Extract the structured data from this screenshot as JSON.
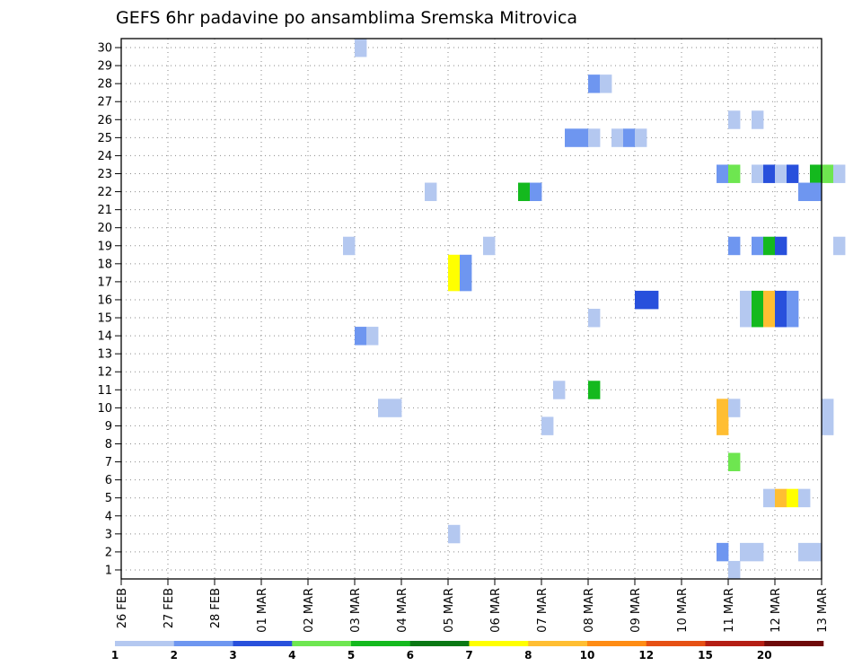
{
  "chart_data": {
    "type": "heatmap",
    "title": "GEFS 6hr padavine po ansamblima Sremska Mitrovica",
    "xlabel": "",
    "ylabel": "",
    "x_ticks": [
      "26 FEB",
      "27 FEB",
      "28 FEB",
      "01 MAR",
      "02 MAR",
      "03 MAR",
      "04 MAR",
      "05 MAR",
      "06 MAR",
      "07 MAR",
      "08 MAR",
      "09 MAR",
      "10 MAR",
      "11 MAR",
      "12 MAR",
      "13 MAR"
    ],
    "x_range_days": [
      0,
      15
    ],
    "y_ticks": [
      "1",
      "2",
      "3",
      "4",
      "5",
      "6",
      "7",
      "8",
      "9",
      "10",
      "11",
      "12",
      "13",
      "14",
      "15",
      "16",
      "17",
      "18",
      "19",
      "20",
      "21",
      "22",
      "23",
      "24",
      "25",
      "26",
      "27",
      "28",
      "29",
      "30"
    ],
    "y_range": [
      0.5,
      30.5
    ],
    "grid": true,
    "colorbar": {
      "colors": [
        "#b4c8f0",
        "#6e96f0",
        "#2850dc",
        "#6ee650",
        "#14b91e",
        "#0a7814",
        "#ffff00",
        "#ffbe32",
        "#ff8c14",
        "#e65014",
        "#b41e14",
        "#6e0a0a"
      ],
      "tick_labels": [
        "1",
        "2",
        "3",
        "4",
        "5",
        "6",
        "7",
        "8",
        "10",
        "12",
        "15",
        "20"
      ]
    },
    "cells_units": "member, start_day_since_26FEB, length_days, color_class_1_to_12",
    "cells": [
      [
        30,
        5.0,
        0.25,
        1
      ],
      [
        28,
        10.0,
        0.25,
        2
      ],
      [
        28,
        10.25,
        0.25,
        1
      ],
      [
        26,
        13.0,
        0.25,
        1
      ],
      [
        26,
        13.5,
        0.25,
        1
      ],
      [
        25,
        9.5,
        0.5,
        2
      ],
      [
        25,
        10.0,
        0.25,
        1
      ],
      [
        25,
        10.5,
        0.25,
        1
      ],
      [
        25,
        10.75,
        0.25,
        2
      ],
      [
        25,
        11.0,
        0.25,
        1
      ],
      [
        23,
        12.75,
        0.25,
        2
      ],
      [
        23,
        13.0,
        0.25,
        4
      ],
      [
        23,
        13.5,
        0.25,
        1
      ],
      [
        23,
        13.75,
        0.25,
        3
      ],
      [
        23,
        14.0,
        0.25,
        1
      ],
      [
        23,
        14.25,
        0.25,
        3
      ],
      [
        23,
        14.75,
        0.25,
        5
      ],
      [
        23,
        15.0,
        0.25,
        4
      ],
      [
        23,
        15.25,
        0.25,
        1
      ],
      [
        22,
        6.5,
        0.25,
        1
      ],
      [
        22,
        8.5,
        0.25,
        5
      ],
      [
        22,
        8.75,
        0.25,
        2
      ],
      [
        22,
        14.5,
        0.5,
        2
      ],
      [
        19,
        4.75,
        0.25,
        1
      ],
      [
        19,
        7.75,
        0.25,
        1
      ],
      [
        19,
        13.0,
        0.25,
        2
      ],
      [
        19,
        13.5,
        0.25,
        2
      ],
      [
        19,
        13.75,
        0.25,
        5
      ],
      [
        19,
        14.0,
        0.25,
        3
      ],
      [
        19,
        15.25,
        0.25,
        1
      ],
      [
        18,
        7.0,
        0.25,
        7
      ],
      [
        18,
        7.25,
        0.25,
        2
      ],
      [
        17,
        7.0,
        0.25,
        7
      ],
      [
        17,
        7.25,
        0.25,
        2
      ],
      [
        16,
        11.0,
        0.5,
        3
      ],
      [
        16,
        13.25,
        0.25,
        1
      ],
      [
        16,
        13.5,
        0.25,
        5
      ],
      [
        16,
        13.75,
        0.25,
        8
      ],
      [
        16,
        14.0,
        0.25,
        3
      ],
      [
        16,
        14.25,
        0.25,
        2
      ],
      [
        15,
        10.0,
        0.25,
        1
      ],
      [
        15,
        13.25,
        0.25,
        1
      ],
      [
        15,
        13.5,
        0.25,
        5
      ],
      [
        15,
        13.75,
        0.25,
        8
      ],
      [
        15,
        14.0,
        0.25,
        3
      ],
      [
        15,
        14.25,
        0.25,
        2
      ],
      [
        14,
        5.0,
        0.25,
        2
      ],
      [
        14,
        5.25,
        0.25,
        1
      ],
      [
        11,
        9.25,
        0.25,
        1
      ],
      [
        11,
        10.0,
        0.25,
        5
      ],
      [
        10,
        5.5,
        0.5,
        1
      ],
      [
        10,
        12.75,
        0.25,
        8
      ],
      [
        10,
        13.0,
        0.25,
        1
      ],
      [
        10,
        15.0,
        0.25,
        1
      ],
      [
        9,
        9.0,
        0.25,
        1
      ],
      [
        9,
        12.75,
        0.25,
        8
      ],
      [
        9,
        15.0,
        0.25,
        1
      ],
      [
        7,
        13.0,
        0.25,
        4
      ],
      [
        5,
        13.75,
        0.25,
        1
      ],
      [
        5,
        14.0,
        0.25,
        8
      ],
      [
        5,
        14.25,
        0.25,
        7
      ],
      [
        5,
        14.5,
        0.25,
        1
      ],
      [
        3,
        7.0,
        0.25,
        1
      ],
      [
        2,
        12.75,
        0.25,
        2
      ],
      [
        2,
        13.25,
        0.5,
        1
      ],
      [
        2,
        14.5,
        0.5,
        1
      ],
      [
        1,
        13.0,
        0.25,
        1
      ]
    ]
  }
}
